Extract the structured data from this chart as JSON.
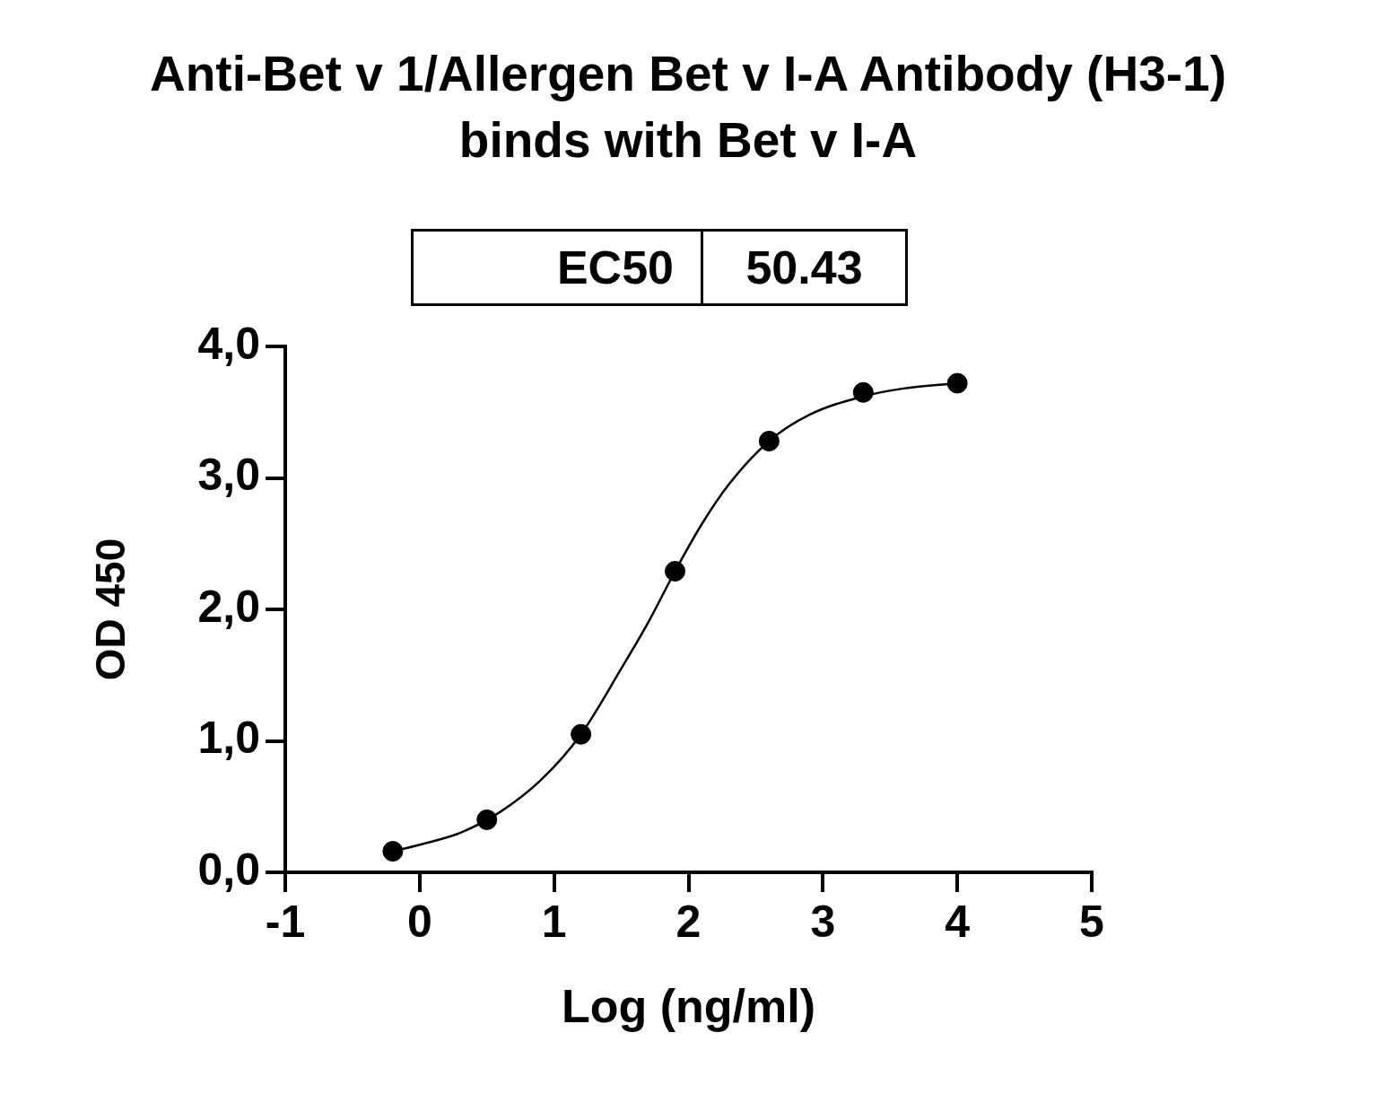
{
  "chart_data": {
    "type": "scatter",
    "title": "Anti-Bet v 1/Allergen Bet v I-A Antibody (H3-1) binds with Bet v I-A",
    "xlabel": "Log (ng/ml)",
    "ylabel": "OD 450",
    "annotations": [
      "EC50",
      "50.43"
    ],
    "series": [
      {
        "color": "#000000",
        "x": [
          -0.2,
          0.5,
          1.2,
          1.9,
          2.6,
          3.3,
          4.0
        ],
        "values": [
          0.16,
          0.4,
          1.05,
          2.29,
          3.28,
          3.65,
          3.72
        ]
      },
      {
        "type": "line",
        "color": "#000000",
        "marker": "none",
        "x": [
          -0.2,
          0,
          0.3,
          0.6,
          0.9,
          1.2,
          1.5,
          1.7,
          1.9,
          2.1,
          2.3,
          2.6,
          2.9,
          3.3,
          3.6,
          4.0
        ],
        "values": [
          0.16,
          0.21,
          0.3,
          0.46,
          0.7,
          1.05,
          1.55,
          1.9,
          2.29,
          2.65,
          2.95,
          3.28,
          3.48,
          3.62,
          3.68,
          3.72
        ]
      }
    ],
    "xlim": [
      -1,
      5
    ],
    "xticks": [
      -1,
      0,
      1,
      2,
      3,
      4,
      5
    ],
    "ylim": [
      0,
      4
    ],
    "yticks": [
      {
        "value": 0,
        "label": "0,0"
      },
      {
        "value": 1,
        "label": "1,0"
      },
      {
        "value": 2,
        "label": "2,0"
      },
      {
        "value": 3,
        "label": "3,0"
      },
      {
        "value": 4,
        "label": "4,0"
      }
    ],
    "marker": "circle",
    "grid": false,
    "legend": false
  }
}
